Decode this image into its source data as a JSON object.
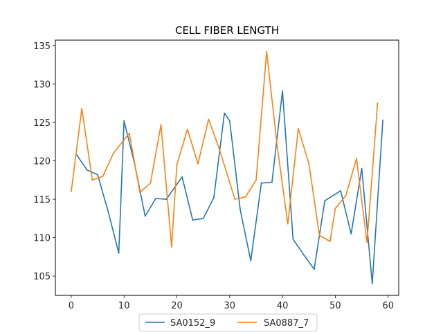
{
  "chart_data": {
    "type": "line",
    "title": "CELL FIBER LENGTH",
    "xlabel": "",
    "ylabel": "",
    "xlim": [
      -3,
      62
    ],
    "ylim": [
      102.5,
      135.7
    ],
    "xticks": [
      0,
      10,
      20,
      30,
      40,
      50,
      60
    ],
    "yticks": [
      105,
      110,
      115,
      120,
      125,
      130,
      135
    ],
    "grid": false,
    "legend_position": "bottom-center",
    "series": [
      {
        "name": "SA0152_9",
        "color": "#1f77b4",
        "x": [
          1,
          3,
          5,
          7,
          9,
          10,
          12,
          14,
          16,
          18,
          21,
          23,
          25,
          27,
          29,
          30,
          32,
          34,
          36,
          38,
          40,
          42,
          44,
          46,
          48,
          51,
          53,
          55,
          57,
          59
        ],
        "y": [
          120.8,
          118.8,
          118.2,
          113.4,
          108.0,
          125.2,
          119.6,
          112.8,
          115.1,
          115.0,
          117.9,
          112.3,
          112.5,
          115.2,
          126.2,
          125.2,
          113.6,
          107.0,
          117.1,
          117.2,
          129.1,
          109.8,
          107.8,
          105.9,
          114.8,
          116.1,
          110.5,
          119.0,
          104.0,
          125.3
        ]
      },
      {
        "name": "SA0887_7",
        "color": "#ff7f0e",
        "x": [
          0,
          2,
          4,
          6,
          8,
          11,
          13,
          15,
          17,
          19,
          20,
          22,
          24,
          26,
          28,
          31,
          33,
          35,
          37,
          39,
          41,
          43,
          45,
          47,
          49,
          50,
          52,
          54,
          56,
          58
        ],
        "y": [
          116.0,
          126.8,
          117.5,
          118.0,
          121.0,
          123.6,
          115.9,
          117.1,
          124.7,
          108.8,
          119.5,
          124.1,
          119.6,
          125.4,
          121.6,
          115.0,
          115.3,
          117.5,
          134.2,
          121.9,
          111.8,
          124.2,
          119.6,
          110.3,
          109.5,
          113.8,
          115.5,
          120.3,
          109.4,
          127.5
        ]
      }
    ]
  }
}
